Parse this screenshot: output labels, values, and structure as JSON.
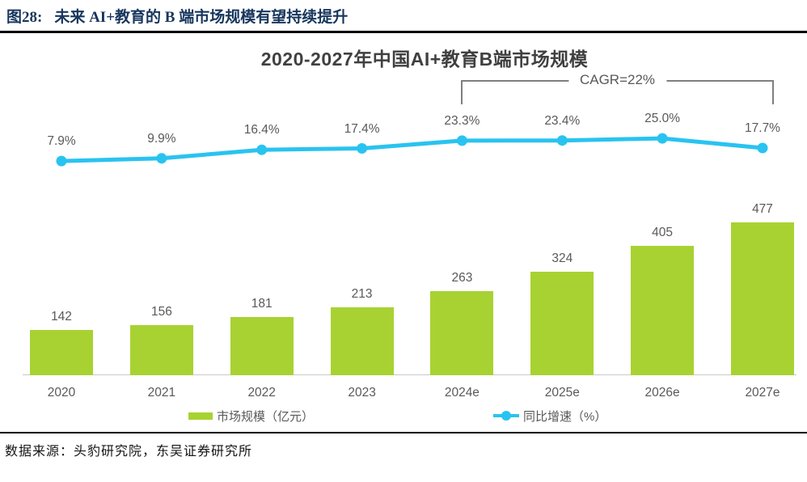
{
  "header": {
    "label": "图28:",
    "text": "未来 AI+教育的 B 端市场规模有望持续提升"
  },
  "source": {
    "text": "数据来源：头豹研究院，东吴证券研究所"
  },
  "chart_data": {
    "type": "bar",
    "title": "2020-2027年中国AI+教育B端市场规模",
    "categories": [
      "2020",
      "2021",
      "2022",
      "2023",
      "2024e",
      "2025e",
      "2026e",
      "2027e"
    ],
    "series": [
      {
        "name": "市场规模（亿元）",
        "type": "bar",
        "color": "#A8D232",
        "values": [
          142,
          156,
          181,
          213,
          263,
          324,
          405,
          477
        ]
      },
      {
        "name": "同比增速（%）",
        "type": "line",
        "color": "#29C3F0",
        "values": [
          7.9,
          9.9,
          16.4,
          17.4,
          23.3,
          23.4,
          25.0,
          17.7
        ]
      }
    ],
    "annotation": {
      "text": "CAGR=22%",
      "span": [
        "2024e",
        "2027e"
      ]
    },
    "xlabel": "",
    "ylabel": "",
    "grid": false,
    "legend_position": "bottom",
    "colors": {
      "title": "#404040",
      "labels": "#595959",
      "header": "#17365D",
      "bracket": "#7F7F7F",
      "axis_line": "#C9C9C9"
    }
  }
}
